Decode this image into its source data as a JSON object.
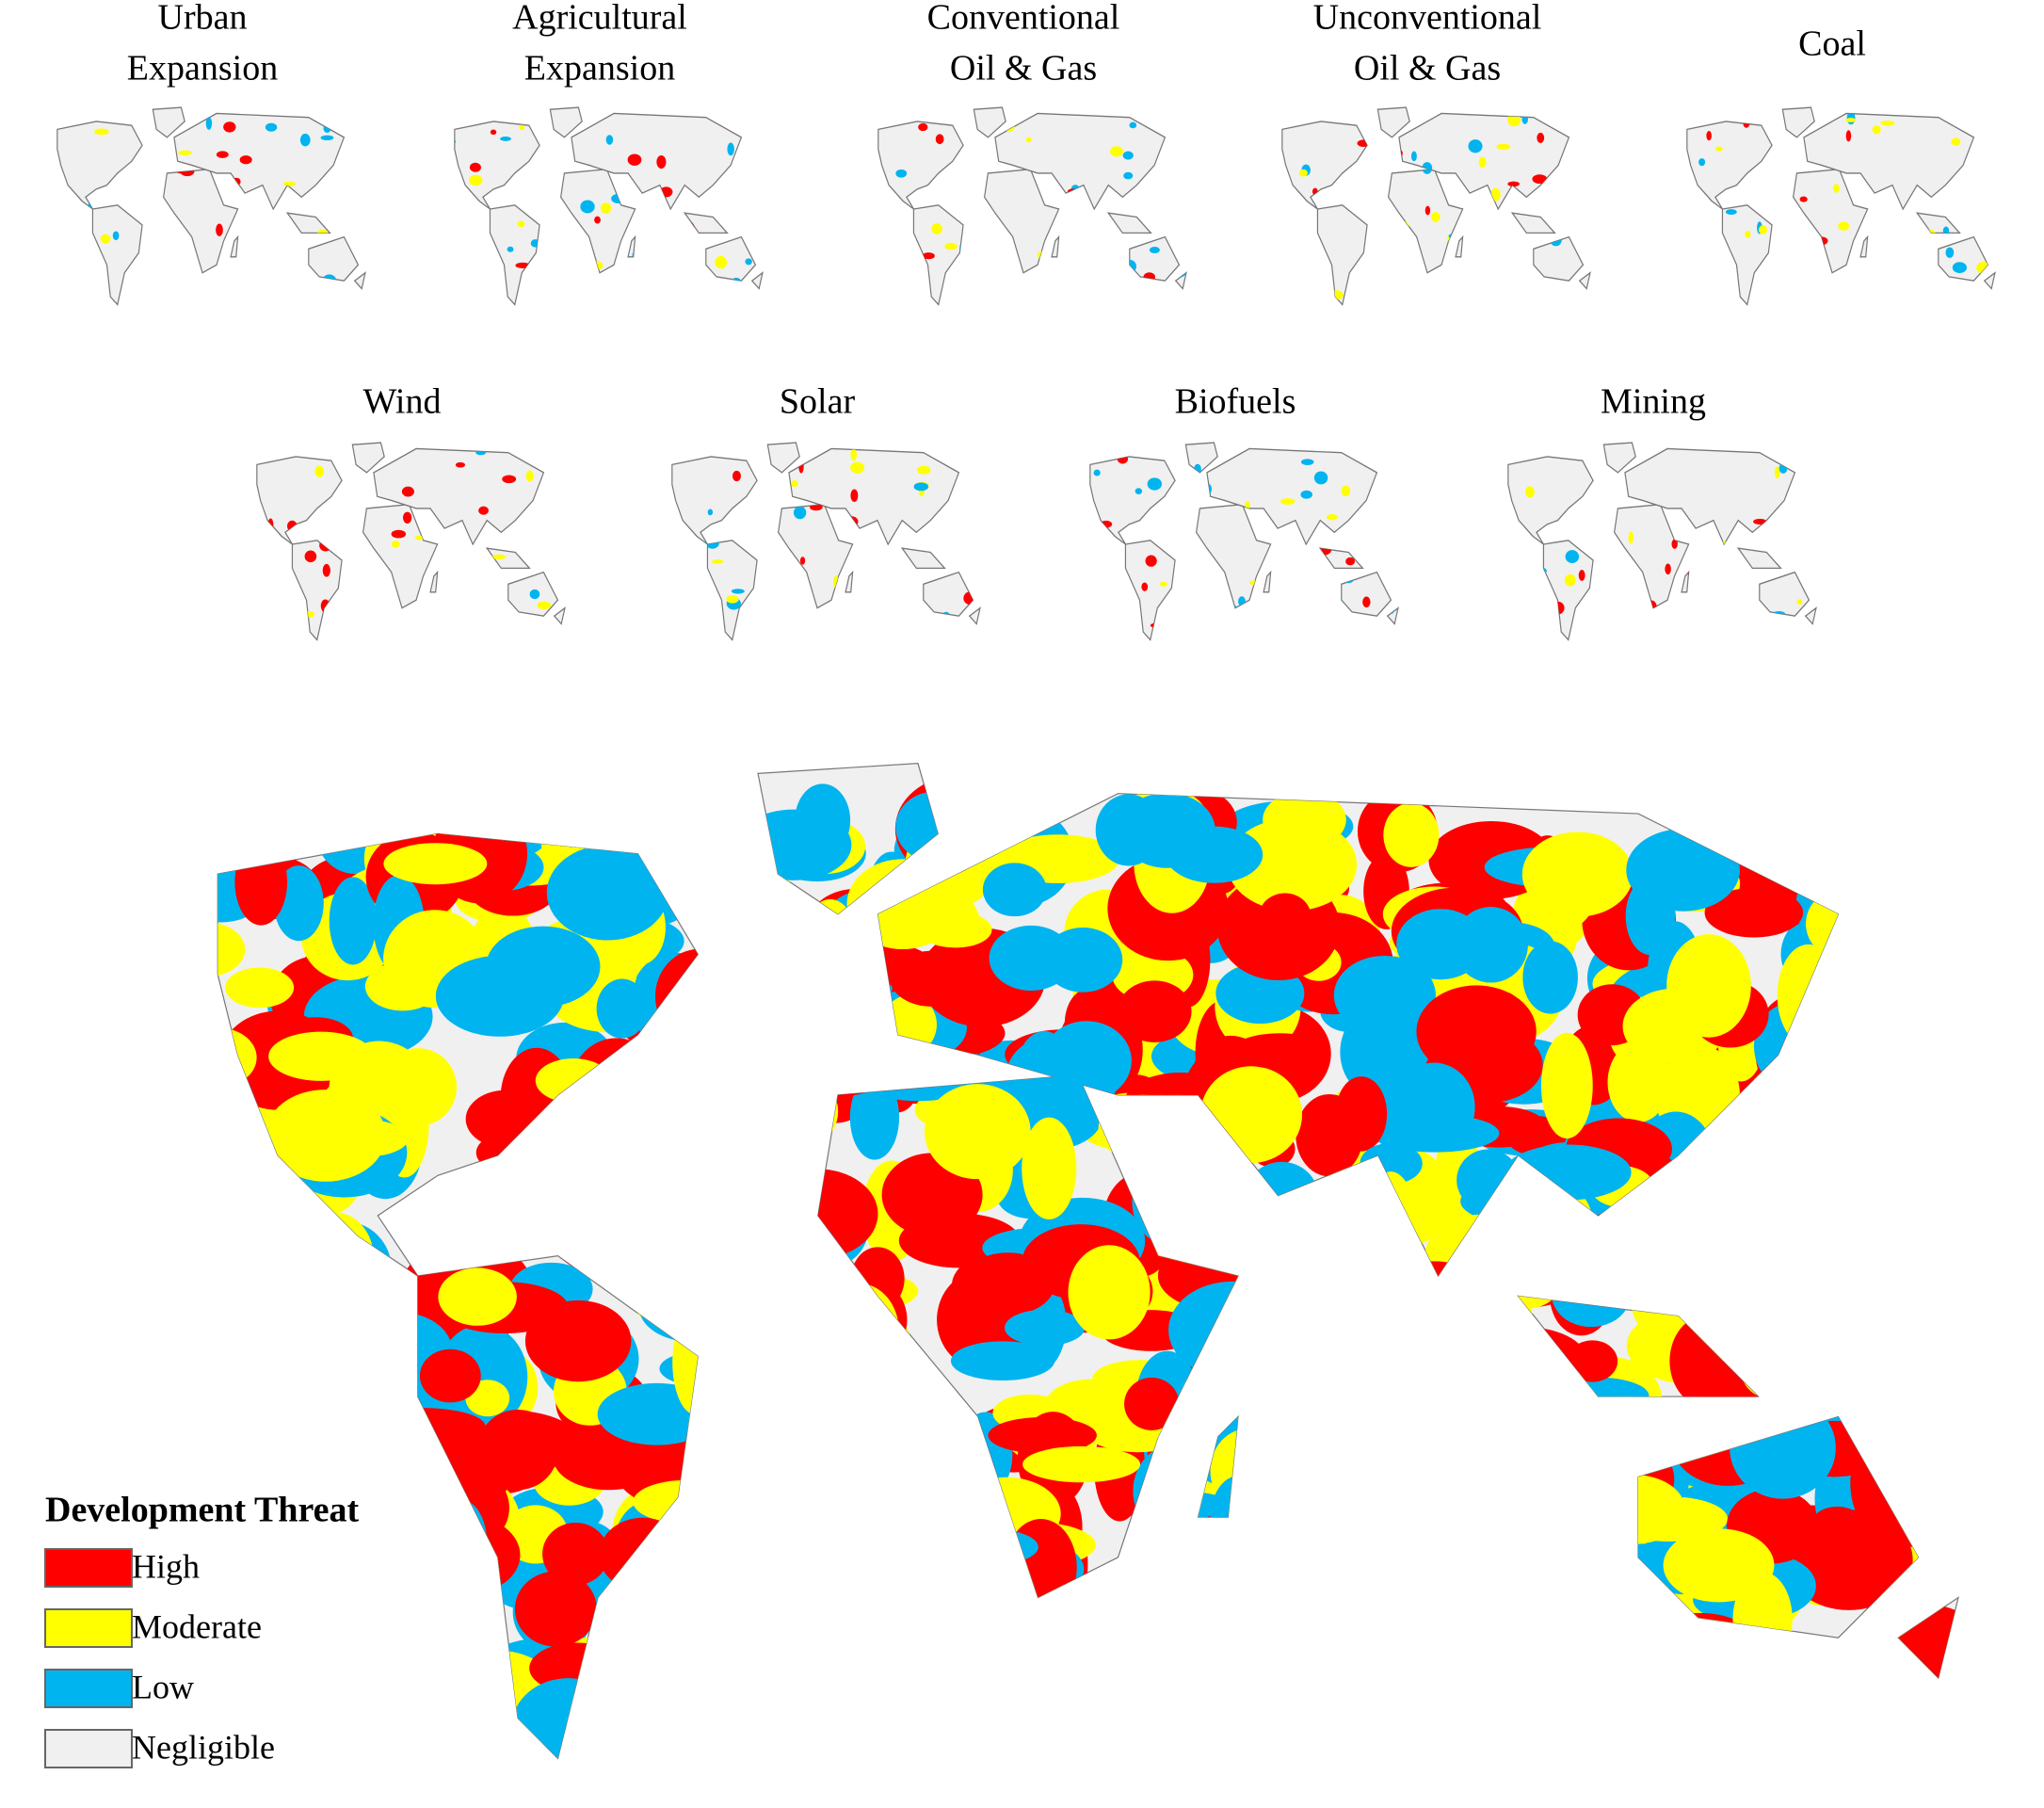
{
  "panels": [
    {
      "title": [
        "Urban",
        "Expansion"
      ]
    },
    {
      "title": [
        "Agricultural",
        "Expansion"
      ]
    },
    {
      "title": [
        "Conventional",
        "Oil & Gas"
      ]
    },
    {
      "title": [
        "Unconventional",
        "Oil & Gas"
      ]
    },
    {
      "title": [
        "Coal"
      ]
    },
    {
      "title": [
        "Wind"
      ]
    },
    {
      "title": [
        "Solar"
      ]
    },
    {
      "title": [
        "Biofuels"
      ]
    },
    {
      "title": [
        "Mining"
      ]
    }
  ],
  "legend": {
    "title": "Development Threat",
    "items": [
      {
        "label": "High",
        "color": "#ff0000"
      },
      {
        "label": "Moderate",
        "color": "#ffff00"
      },
      {
        "label": "Low",
        "color": "#00b4f0"
      },
      {
        "label": "Negligible",
        "color": "#f0f0f0"
      }
    ]
  }
}
